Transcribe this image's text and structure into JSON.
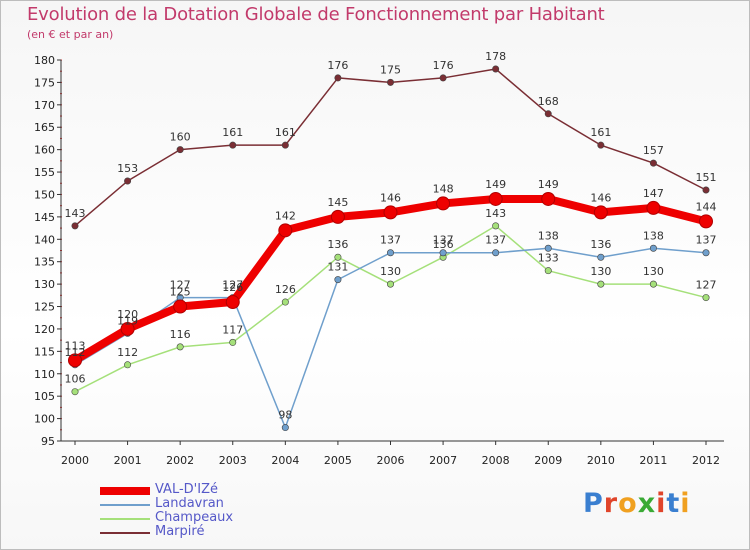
{
  "chart_data": {
    "type": "line",
    "title": "Evolution de la Dotation Globale de Fonctionnement par Habitant",
    "subtitle": "(en € et par an)",
    "xlabel": "",
    "ylabel": "",
    "x": [
      "2000",
      "2001",
      "2002",
      "2003",
      "2004",
      "2005",
      "2006",
      "2007",
      "2008",
      "2009",
      "2010",
      "2011",
      "2012"
    ],
    "ylim": [
      95,
      180
    ],
    "yticks": [
      95,
      100,
      105,
      110,
      115,
      120,
      125,
      130,
      135,
      140,
      145,
      150,
      155,
      160,
      165,
      170,
      175,
      180
    ],
    "grid": false,
    "legend_position": "bottom-left",
    "series": [
      {
        "name": "VAL-D'IZé",
        "color": "#ee0000",
        "values": [
          113,
          120,
          125,
          126,
          142,
          145,
          146,
          148,
          149,
          149,
          146,
          147,
          144
        ]
      },
      {
        "name": "Landavran",
        "color": "#6f9fcc",
        "values": [
          112,
          119,
          127,
          127,
          98,
          131,
          137,
          137,
          137,
          138,
          136,
          138,
          137
        ]
      },
      {
        "name": "Champeaux",
        "color": "#a5e07a",
        "values": [
          106,
          112,
          116,
          117,
          126,
          136,
          130,
          136,
          143,
          133,
          130,
          130,
          127
        ]
      },
      {
        "name": "Marpiré",
        "color": "#7a2e34",
        "values": [
          143,
          153,
          160,
          161,
          161,
          176,
          175,
          176,
          178,
          168,
          161,
          157,
          151
        ]
      }
    ]
  },
  "logo": {
    "text": "Proxiti",
    "letter_colors": [
      "#3a7fd0",
      "#e0442a",
      "#f0a020",
      "#3aaa35",
      "#e0442a",
      "#3a7fd0",
      "#f0a020"
    ]
  }
}
